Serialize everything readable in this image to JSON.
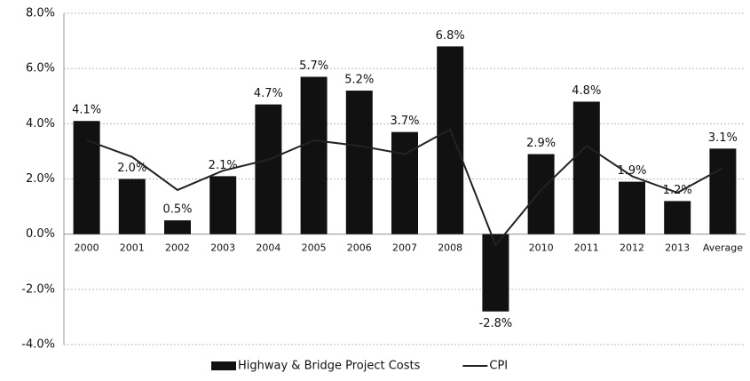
{
  "chart_data": {
    "type": "bar",
    "categories": [
      "2000",
      "2001",
      "2002",
      "2003",
      "2004",
      "2005",
      "2006",
      "2007",
      "2008",
      null,
      "2010",
      "2011",
      "2012",
      "2013",
      "Average"
    ],
    "series": [
      {
        "name": "Highway & Bridge Project Costs",
        "type": "bar",
        "color": "#111111",
        "values": [
          4.1,
          2.0,
          0.5,
          2.1,
          4.7,
          5.7,
          5.2,
          3.7,
          6.8,
          -2.8,
          2.9,
          4.8,
          1.9,
          1.2,
          3.1
        ],
        "value_labels": [
          "4.1%",
          "2.0%",
          "0.5%",
          "2.1%",
          "4.7%",
          "5.7%",
          "5.2%",
          "3.7%",
          "6.8%",
          "-2.8%",
          "2.9%",
          "4.8%",
          "1.9%",
          "1.2%",
          "3.1%"
        ]
      },
      {
        "name": "CPI",
        "type": "line",
        "color": "#222222",
        "values": [
          3.4,
          2.8,
          1.6,
          2.3,
          2.7,
          3.4,
          3.2,
          2.9,
          3.8,
          -0.4,
          1.6,
          3.2,
          2.1,
          1.5,
          2.4
        ]
      }
    ],
    "ylim": [
      -4,
      8
    ],
    "yticks": [
      {
        "value": -4,
        "label": "-4.0%"
      },
      {
        "value": -2,
        "label": "-2.0%"
      },
      {
        "value": 0,
        "label": "0.0%"
      },
      {
        "value": 2,
        "label": "2.0%"
      },
      {
        "value": 4,
        "label": "4.0%"
      },
      {
        "value": 6,
        "label": "6.0%"
      },
      {
        "value": 8,
        "label": "8.0%"
      }
    ],
    "grid": true,
    "legend": "bottom"
  }
}
